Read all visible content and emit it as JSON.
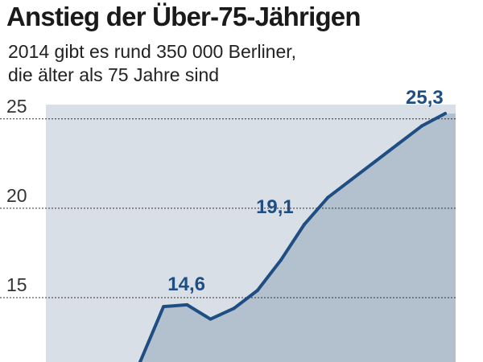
{
  "title": "Anstieg der Über-75-Jährigen",
  "subtitle": {
    "line1": "2014 gibt es rund 350 000 Berliner,",
    "line2": "die älter als 75 Jahre sind"
  },
  "colors": {
    "area_fill": "#b3c1cf",
    "plot_background": "#d9dfe6",
    "line": "#1f4e83",
    "gridline": "#333333"
  },
  "chart_data": {
    "type": "area",
    "title": "Anstieg der Über-75-Jährigen",
    "xlabel": "",
    "ylabel": "",
    "ylim": [
      11.4,
      25.8
    ],
    "yticks": [
      15,
      20,
      25
    ],
    "ytick_labels": [
      "15",
      "20",
      "25"
    ],
    "grid": "horizontal dashed",
    "x": [
      0,
      1,
      2,
      3,
      4,
      5,
      6,
      7,
      8,
      9,
      10,
      11,
      12,
      13
    ],
    "values": [
      11.4,
      14.5,
      14.6,
      13.8,
      14.4,
      15.4,
      17.1,
      19.1,
      20.6,
      21.6,
      22.6,
      23.6,
      24.6,
      25.3
    ],
    "annotations": [
      {
        "index": 2,
        "label": "14,6"
      },
      {
        "index": 7,
        "label": "19,1"
      },
      {
        "index": 13,
        "label": "25,3"
      }
    ]
  }
}
